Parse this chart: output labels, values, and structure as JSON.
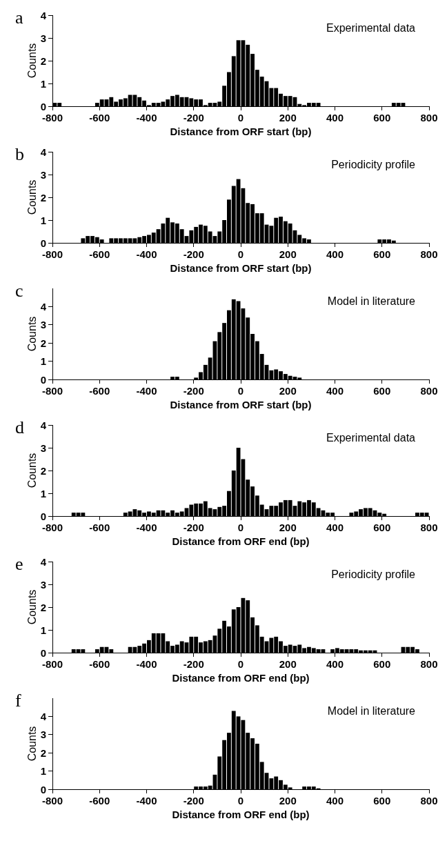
{
  "chart_data": [
    {
      "type": "histogram",
      "title": "a",
      "annotations": [
        "Experimental data"
      ],
      "xlabel": "Distance from ORF start (bp)",
      "ylabel": "Counts",
      "color": "#000000",
      "xlim": [
        -800,
        800
      ],
      "xticks": [
        -800,
        -600,
        -400,
        -200,
        0,
        200,
        400,
        600,
        800
      ],
      "ylim": [
        0,
        4
      ],
      "yticks": [
        0,
        1,
        2,
        3,
        4
      ],
      "grid": false,
      "legend": false,
      "bins": [
        -800,
        -780,
        -760,
        -740,
        -720,
        -700,
        -680,
        -660,
        -640,
        -620,
        -600,
        -580,
        -560,
        -540,
        -520,
        -500,
        -480,
        -460,
        -440,
        -420,
        -400,
        -380,
        -360,
        -340,
        -320,
        -300,
        -280,
        -260,
        -240,
        -220,
        -200,
        -180,
        -160,
        -140,
        -120,
        -100,
        -80,
        -60,
        -40,
        -20,
        0,
        20,
        40,
        60,
        80,
        100,
        120,
        140,
        160,
        180,
        200,
        220,
        240,
        260,
        280,
        300,
        320,
        340,
        360,
        380,
        400,
        420,
        440,
        460,
        480,
        500,
        520,
        540,
        560,
        580,
        600,
        620,
        640,
        660,
        680,
        700,
        720,
        740,
        760,
        780,
        800
      ],
      "values": [
        0.15,
        0.15,
        0,
        0,
        0,
        0,
        0,
        0,
        0,
        0.15,
        0.3,
        0.3,
        0.4,
        0.2,
        0.3,
        0.35,
        0.5,
        0.5,
        0.4,
        0.25,
        0.05,
        0.15,
        0.15,
        0.2,
        0.3,
        0.45,
        0.5,
        0.4,
        0.4,
        0.35,
        0.3,
        0.3,
        0.05,
        0.15,
        0.15,
        0.2,
        0.9,
        1.5,
        2.2,
        2.9,
        2.9,
        2.7,
        2.3,
        1.6,
        1.3,
        1.1,
        0.8,
        0.8,
        0.55,
        0.45,
        0.45,
        0.4,
        0.1,
        0.05,
        0.15,
        0.15,
        0.15,
        0,
        0,
        0,
        0,
        0,
        0,
        0,
        0,
        0,
        0,
        0,
        0,
        0,
        0,
        0,
        0.15,
        0.15,
        0.15,
        0,
        0,
        0,
        0,
        0
      ]
    },
    {
      "type": "histogram",
      "title": "b",
      "annotations": [
        "Periodicity profile"
      ],
      "xlabel": "Distance from ORF start (bp)",
      "ylabel": "Counts",
      "color": "#000000",
      "xlim": [
        -800,
        800
      ],
      "xticks": [
        -800,
        -600,
        -400,
        -200,
        0,
        200,
        400,
        600,
        800
      ],
      "ylim": [
        0,
        4
      ],
      "yticks": [
        0,
        1,
        2,
        3,
        4
      ],
      "grid": false,
      "legend": false,
      "bins": [
        -800,
        -780,
        -760,
        -740,
        -720,
        -700,
        -680,
        -660,
        -640,
        -620,
        -600,
        -580,
        -560,
        -540,
        -520,
        -500,
        -480,
        -460,
        -440,
        -420,
        -400,
        -380,
        -360,
        -340,
        -320,
        -300,
        -280,
        -260,
        -240,
        -220,
        -200,
        -180,
        -160,
        -140,
        -120,
        -100,
        -80,
        -60,
        -40,
        -20,
        0,
        20,
        40,
        60,
        80,
        100,
        120,
        140,
        160,
        180,
        200,
        220,
        240,
        260,
        280,
        300,
        320,
        340,
        360,
        380,
        400,
        420,
        440,
        460,
        480,
        500,
        520,
        540,
        560,
        580,
        600,
        620,
        640,
        660,
        680,
        700,
        720,
        740,
        760,
        780,
        800
      ],
      "values": [
        0,
        0,
        0,
        0,
        0,
        0,
        0.2,
        0.3,
        0.3,
        0.25,
        0.15,
        0,
        0.2,
        0.2,
        0.2,
        0.2,
        0.2,
        0.2,
        0.25,
        0.3,
        0.35,
        0.45,
        0.6,
        0.85,
        1.1,
        0.9,
        0.85,
        0.6,
        0.3,
        0.55,
        0.7,
        0.8,
        0.75,
        0.5,
        0.3,
        0.5,
        1.0,
        1.9,
        2.5,
        2.8,
        2.4,
        1.75,
        1.7,
        1.3,
        1.3,
        0.8,
        0.75,
        1.1,
        1.15,
        0.95,
        0.85,
        0.55,
        0.35,
        0.2,
        0.15,
        0,
        0,
        0,
        0,
        0,
        0,
        0,
        0,
        0,
        0,
        0,
        0,
        0,
        0,
        0.15,
        0.15,
        0.15,
        0.1,
        0,
        0,
        0,
        0,
        0,
        0,
        0
      ]
    },
    {
      "type": "histogram",
      "title": "c",
      "annotations": [
        "Model in literature"
      ],
      "xlabel": "Distance from ORF start (bp)",
      "ylabel": "Counts",
      "color": "#000000",
      "xlim": [
        -800,
        800
      ],
      "xticks": [
        -800,
        -600,
        -400,
        -200,
        0,
        200,
        400,
        600,
        800
      ],
      "ylim": [
        0,
        5
      ],
      "yticks": [
        0,
        1,
        2,
        3,
        4
      ],
      "grid": false,
      "legend": false,
      "bins": [
        -800,
        -780,
        -760,
        -740,
        -720,
        -700,
        -680,
        -660,
        -640,
        -620,
        -600,
        -580,
        -560,
        -540,
        -520,
        -500,
        -480,
        -460,
        -440,
        -420,
        -400,
        -380,
        -360,
        -340,
        -320,
        -300,
        -280,
        -260,
        -240,
        -220,
        -200,
        -180,
        -160,
        -140,
        -120,
        -100,
        -80,
        -60,
        -40,
        -20,
        0,
        20,
        40,
        60,
        80,
        100,
        120,
        140,
        160,
        180,
        200,
        220,
        240,
        260,
        280,
        300,
        320,
        340,
        360,
        380,
        400,
        420,
        440,
        460,
        480,
        500,
        520,
        540,
        560,
        580,
        600,
        620,
        640,
        660,
        680,
        700,
        720,
        740,
        760,
        780,
        800
      ],
      "values": [
        0,
        0,
        0,
        0,
        0,
        0,
        0,
        0,
        0,
        0,
        0,
        0,
        0,
        0,
        0,
        0,
        0,
        0,
        0,
        0,
        0,
        0,
        0,
        0,
        0,
        0.15,
        0.15,
        0,
        0,
        0,
        0.1,
        0.4,
        0.8,
        1.2,
        2.1,
        2.6,
        3.1,
        3.8,
        4.4,
        4.3,
        3.9,
        3.4,
        2.5,
        2.1,
        1.4,
        0.8,
        0.5,
        0.55,
        0.45,
        0.3,
        0.2,
        0.15,
        0.1,
        0,
        0,
        0,
        0,
        0,
        0,
        0,
        0,
        0,
        0,
        0,
        0,
        0,
        0,
        0,
        0,
        0,
        0,
        0,
        0,
        0,
        0,
        0,
        0,
        0,
        0,
        0
      ]
    },
    {
      "type": "histogram",
      "title": "d",
      "annotations": [
        "Experimental data"
      ],
      "xlabel": "Distance from ORF end (bp)",
      "ylabel": "Counts",
      "color": "#000000",
      "xlim": [
        -800,
        800
      ],
      "xticks": [
        -800,
        -600,
        -400,
        -200,
        0,
        200,
        400,
        600,
        800
      ],
      "ylim": [
        0,
        4
      ],
      "yticks": [
        0,
        1,
        2,
        3,
        4
      ],
      "grid": false,
      "legend": false,
      "bins": [
        -800,
        -780,
        -760,
        -740,
        -720,
        -700,
        -680,
        -660,
        -640,
        -620,
        -600,
        -580,
        -560,
        -540,
        -520,
        -500,
        -480,
        -460,
        -440,
        -420,
        -400,
        -380,
        -360,
        -340,
        -320,
        -300,
        -280,
        -260,
        -240,
        -220,
        -200,
        -180,
        -160,
        -140,
        -120,
        -100,
        -80,
        -60,
        -40,
        -20,
        0,
        20,
        40,
        60,
        80,
        100,
        120,
        140,
        160,
        180,
        200,
        220,
        240,
        260,
        280,
        300,
        320,
        340,
        360,
        380,
        400,
        420,
        440,
        460,
        480,
        500,
        520,
        540,
        560,
        580,
        600,
        620,
        640,
        660,
        680,
        700,
        720,
        740,
        760,
        780,
        800
      ],
      "values": [
        0,
        0,
        0,
        0,
        0.15,
        0.15,
        0.15,
        0,
        0,
        0,
        0,
        0,
        0,
        0,
        0,
        0.15,
        0.2,
        0.3,
        0.25,
        0.15,
        0.2,
        0.15,
        0.25,
        0.25,
        0.15,
        0.25,
        0.15,
        0.2,
        0.35,
        0.5,
        0.55,
        0.55,
        0.65,
        0.35,
        0.3,
        0.4,
        0.45,
        1.1,
        2.0,
        3.0,
        2.5,
        1.6,
        1.3,
        0.9,
        0.5,
        0.3,
        0.45,
        0.45,
        0.6,
        0.7,
        0.7,
        0.45,
        0.65,
        0.6,
        0.7,
        0.6,
        0.35,
        0.25,
        0.15,
        0.15,
        0,
        0,
        0,
        0.15,
        0.2,
        0.3,
        0.35,
        0.35,
        0.25,
        0.15,
        0.1,
        0,
        0,
        0,
        0,
        0,
        0,
        0.15,
        0.15,
        0.15
      ]
    },
    {
      "type": "histogram",
      "title": "e",
      "annotations": [
        "Periodicity profile"
      ],
      "xlabel": "Distance from ORF end (bp)",
      "ylabel": "Counts",
      "color": "#000000",
      "xlim": [
        -800,
        800
      ],
      "xticks": [
        -800,
        -600,
        -400,
        -200,
        0,
        200,
        400,
        600,
        800
      ],
      "ylim": [
        0,
        4
      ],
      "yticks": [
        0,
        1,
        2,
        3,
        4
      ],
      "grid": false,
      "legend": false,
      "bins": [
        -800,
        -780,
        -760,
        -740,
        -720,
        -700,
        -680,
        -660,
        -640,
        -620,
        -600,
        -580,
        -560,
        -540,
        -520,
        -500,
        -480,
        -460,
        -440,
        -420,
        -400,
        -380,
        -360,
        -340,
        -320,
        -300,
        -280,
        -260,
        -240,
        -220,
        -200,
        -180,
        -160,
        -140,
        -120,
        -100,
        -80,
        -60,
        -40,
        -20,
        0,
        20,
        40,
        60,
        80,
        100,
        120,
        140,
        160,
        180,
        200,
        220,
        240,
        260,
        280,
        300,
        320,
        340,
        360,
        380,
        400,
        420,
        440,
        460,
        480,
        500,
        520,
        540,
        560,
        580,
        600,
        620,
        640,
        660,
        680,
        700,
        720,
        740,
        760,
        780,
        800
      ],
      "values": [
        0,
        0,
        0,
        0,
        0.15,
        0.15,
        0.15,
        0,
        0,
        0.15,
        0.25,
        0.25,
        0.15,
        0,
        0,
        0,
        0.25,
        0.25,
        0.3,
        0.4,
        0.55,
        0.85,
        0.85,
        0.85,
        0.5,
        0.3,
        0.35,
        0.5,
        0.45,
        0.7,
        0.7,
        0.45,
        0.5,
        0.55,
        0.75,
        1.05,
        1.4,
        1.15,
        1.9,
        2.0,
        2.4,
        2.3,
        1.55,
        1.2,
        0.7,
        0.5,
        0.65,
        0.7,
        0.5,
        0.3,
        0.35,
        0.3,
        0.35,
        0.2,
        0.25,
        0.2,
        0.15,
        0.15,
        0,
        0.15,
        0.2,
        0.15,
        0.15,
        0.15,
        0.15,
        0.1,
        0.1,
        0.1,
        0.1,
        0,
        0,
        0,
        0,
        0,
        0.25,
        0.25,
        0.25,
        0.15,
        0,
        0
      ]
    },
    {
      "type": "histogram",
      "title": "f",
      "annotations": [
        "Model in literature"
      ],
      "xlabel": "Distance from ORF end (bp)",
      "ylabel": "Counts",
      "color": "#000000",
      "xlim": [
        -800,
        800
      ],
      "xticks": [
        -800,
        -600,
        -400,
        -200,
        0,
        200,
        400,
        600,
        800
      ],
      "ylim": [
        0,
        5
      ],
      "yticks": [
        0,
        1,
        2,
        3,
        4
      ],
      "grid": false,
      "legend": false,
      "bins": [
        -800,
        -780,
        -760,
        -740,
        -720,
        -700,
        -680,
        -660,
        -640,
        -620,
        -600,
        -580,
        -560,
        -540,
        -520,
        -500,
        -480,
        -460,
        -440,
        -420,
        -400,
        -380,
        -360,
        -340,
        -320,
        -300,
        -280,
        -260,
        -240,
        -220,
        -200,
        -180,
        -160,
        -140,
        -120,
        -100,
        -80,
        -60,
        -40,
        -20,
        0,
        20,
        40,
        60,
        80,
        100,
        120,
        140,
        160,
        180,
        200,
        220,
        240,
        260,
        280,
        300,
        320,
        340,
        360,
        380,
        400,
        420,
        440,
        460,
        480,
        500,
        520,
        540,
        560,
        580,
        600,
        620,
        640,
        660,
        680,
        700,
        720,
        740,
        760,
        780,
        800
      ],
      "values": [
        0,
        0,
        0,
        0,
        0,
        0,
        0,
        0,
        0,
        0,
        0,
        0,
        0,
        0,
        0,
        0,
        0,
        0,
        0,
        0,
        0,
        0,
        0,
        0,
        0,
        0,
        0,
        0,
        0,
        0,
        0.15,
        0.15,
        0.15,
        0.2,
        0.8,
        1.8,
        2.7,
        3.1,
        4.3,
        4.0,
        3.8,
        3.1,
        2.8,
        2.5,
        1.5,
        0.9,
        0.6,
        0.7,
        0.5,
        0.25,
        0.1,
        0,
        0,
        0.15,
        0.15,
        0.15,
        0.05,
        0,
        0,
        0,
        0,
        0,
        0,
        0,
        0,
        0,
        0,
        0,
        0,
        0,
        0,
        0,
        0,
        0,
        0,
        0,
        0,
        0,
        0,
        0
      ]
    }
  ]
}
